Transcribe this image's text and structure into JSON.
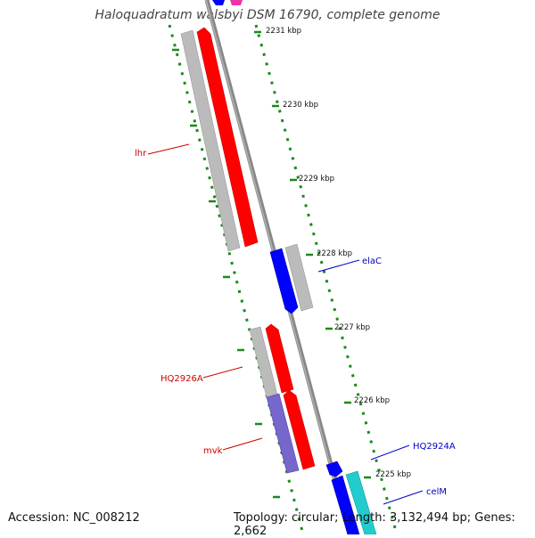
{
  "title": "Haloquadratum walsbyi DSM 16790, complete genome",
  "footer": {
    "accession": "Accession: NC_008212",
    "stats": "Topology: circular; Length: 3,132,494 bp; Genes: 2,662"
  },
  "tick_labels": [
    "2231 kbp",
    "2230 kbp",
    "2229 kbp",
    "2228 kbp",
    "2227 kbp",
    "2226 kbp",
    "2225 kbp"
  ],
  "gene_labels": {
    "lhr": "lhr",
    "HQ2926A": "HQ2926A",
    "mvk": "mvk",
    "elaC": "elaC",
    "HQ2924A": "HQ2924A",
    "celM": "celM"
  },
  "colors": {
    "backbone": "#777777",
    "tick": "#1a8a1a",
    "gene_red": "#ff0000",
    "gene_blue": "#0000ff",
    "gene_gray": "#bbbbbb",
    "gene_purple": "#7766cc",
    "gene_cyan": "#22cccc",
    "gene_magenta": "#ee33aa",
    "label_red": "#cc0000",
    "label_blue": "#0000cc"
  }
}
